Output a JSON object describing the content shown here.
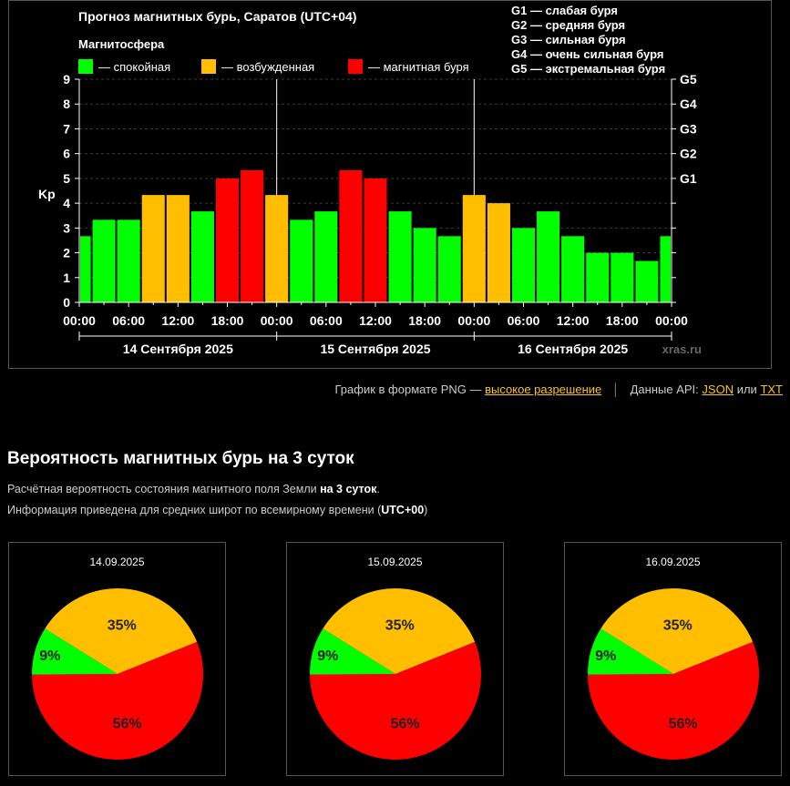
{
  "chart_data": {
    "type": "bar",
    "title": "Прогноз магнитных бурь, Саратов (UTC+04)",
    "ylabel": "Kp",
    "ylim": [
      0,
      9
    ],
    "y_ticks": [
      "0",
      "1",
      "2",
      "3",
      "4",
      "5",
      "6",
      "7",
      "8",
      "9"
    ],
    "g_ticks": [
      {
        "label": "G1",
        "value": 5
      },
      {
        "label": "G2",
        "value": 6
      },
      {
        "label": "G3",
        "value": 7
      },
      {
        "label": "G4",
        "value": 8
      },
      {
        "label": "G5",
        "value": 9
      }
    ],
    "x_tick_labels": [
      "00:00",
      "06:00",
      "12:00",
      "18:00",
      "00:00",
      "06:00",
      "12:00",
      "18:00",
      "00:00",
      "06:00",
      "12:00",
      "18:00",
      "00:00"
    ],
    "day_labels": [
      "14 Сентября 2025",
      "15 Сентября 2025",
      "16 Сентября 2025"
    ],
    "legend_title": "Магнитосфера",
    "legend": [
      {
        "label": "— спокойная",
        "color": "#00ff00"
      },
      {
        "label": "— возбужденная",
        "color": "#ffbf00"
      },
      {
        "label": "— магнитная буря",
        "color": "#ff0000"
      }
    ],
    "g_legend": [
      "G1 — слабая буря",
      "G2 — средняя буря",
      "G3 — сильная буря",
      "G4 — очень сильная буря",
      "G5 — экстремальная буря"
    ],
    "watermark": "xras.ru",
    "values": [
      2.67,
      3.33,
      3.33,
      4.33,
      4.33,
      3.67,
      5.0,
      5.33,
      4.33,
      3.33,
      3.67,
      5.33,
      5.0,
      3.67,
      3.0,
      2.67,
      4.33,
      4.0,
      3.0,
      3.67,
      2.67,
      2.0,
      2.0,
      1.67,
      2.67
    ],
    "levels": [
      "quiet",
      "quiet",
      "quiet",
      "active",
      "active",
      "quiet",
      "storm",
      "storm",
      "active",
      "quiet",
      "quiet",
      "storm",
      "storm",
      "quiet",
      "quiet",
      "quiet",
      "active",
      "active",
      "quiet",
      "quiet",
      "quiet",
      "quiet",
      "quiet",
      "quiet",
      "quiet"
    ],
    "colors": {
      "quiet": "#00ff00",
      "active": "#ffbf00",
      "storm": "#ff0000"
    },
    "pies": [
      {
        "date": "14.09.2025",
        "slices": [
          {
            "label": "35%",
            "value": 35,
            "color": "#ffbf00"
          },
          {
            "label": "56%",
            "value": 56,
            "color": "#ff0000"
          },
          {
            "label": "9%",
            "value": 9,
            "color": "#00ff00"
          }
        ]
      },
      {
        "date": "15.09.2025",
        "slices": [
          {
            "label": "35%",
            "value": 35,
            "color": "#ffbf00"
          },
          {
            "label": "56%",
            "value": 56,
            "color": "#ff0000"
          },
          {
            "label": "9%",
            "value": 9,
            "color": "#00ff00"
          }
        ]
      },
      {
        "date": "16.09.2025",
        "slices": [
          {
            "label": "35%",
            "value": 35,
            "color": "#ffbf00"
          },
          {
            "label": "56%",
            "value": 56,
            "color": "#ff0000"
          },
          {
            "label": "9%",
            "value": 9,
            "color": "#00ff00"
          }
        ]
      }
    ]
  },
  "links": {
    "png_text": "График в формате PNG —",
    "hires": "высокое разрешение",
    "api_text": "Данные API:",
    "json": "JSON",
    "or": "или",
    "txt": "TXT"
  },
  "section": {
    "title": "Вероятность магнитных бурь на 3 суток",
    "p1_text": "Расчётная вероятность состояния магнитного поля Земли",
    "p1_bold": "на 3 суток",
    "p1_end": ".",
    "p2_text": "Информация приведена для средних широт по всемирному времени (",
    "p2_bold": "UTC+00",
    "p2_end": ")"
  }
}
